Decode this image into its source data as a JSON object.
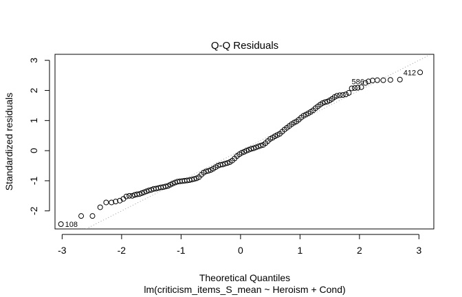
{
  "chart_data": {
    "type": "scatter",
    "title": "Q-Q Residuals",
    "xlabel": "Theoretical Quantiles",
    "ylabel": "Standardized residuals",
    "sublabel": "lm(criticism_items_S_mean ~ Heroism + Cond)",
    "xlim": [
      -3.12,
      3.25
    ],
    "ylim": [
      -2.6,
      3.2
    ],
    "xticks": [
      -3,
      -2,
      -1,
      0,
      1,
      2,
      3
    ],
    "yticks": [
      -2,
      -1,
      0,
      1,
      2,
      3
    ],
    "grid": false,
    "reference_line": {
      "style": "dotted",
      "color": "#999999"
    },
    "labeled_points": [
      {
        "label": "108",
        "x": -3.02,
        "y": -2.44
      },
      {
        "label": "586",
        "x": 2.15,
        "y": 2.3
      },
      {
        "label": "412",
        "x": 3.02,
        "y": 2.6
      }
    ],
    "points": [
      {
        "x": -3.02,
        "y": -2.44
      },
      {
        "x": -2.68,
        "y": -2.17
      },
      {
        "x": -2.49,
        "y": -2.17
      },
      {
        "x": -2.36,
        "y": -1.88
      },
      {
        "x": -2.26,
        "y": -1.72
      },
      {
        "x": -2.17,
        "y": -1.72
      },
      {
        "x": -2.1,
        "y": -1.69
      },
      {
        "x": -2.03,
        "y": -1.66
      },
      {
        "x": -1.97,
        "y": -1.6
      },
      {
        "x": -1.92,
        "y": -1.52
      },
      {
        "x": -1.87,
        "y": -1.5
      },
      {
        "x": -1.82,
        "y": -1.5
      },
      {
        "x": -1.78,
        "y": -1.47
      },
      {
        "x": -1.74,
        "y": -1.45
      },
      {
        "x": -1.7,
        "y": -1.44
      },
      {
        "x": -1.66,
        "y": -1.41
      },
      {
        "x": -1.62,
        "y": -1.38
      },
      {
        "x": -1.58,
        "y": -1.35
      },
      {
        "x": -1.54,
        "y": -1.32
      },
      {
        "x": -1.5,
        "y": -1.3
      },
      {
        "x": -1.46,
        "y": -1.27
      },
      {
        "x": -1.42,
        "y": -1.26
      },
      {
        "x": -1.38,
        "y": -1.24
      },
      {
        "x": -1.34,
        "y": -1.22
      },
      {
        "x": -1.3,
        "y": -1.21
      },
      {
        "x": -1.26,
        "y": -1.19
      },
      {
        "x": -1.22,
        "y": -1.17
      },
      {
        "x": -1.18,
        "y": -1.13
      },
      {
        "x": -1.14,
        "y": -1.09
      },
      {
        "x": -1.1,
        "y": -1.06
      },
      {
        "x": -1.06,
        "y": -1.03
      },
      {
        "x": -1.02,
        "y": -1.02
      },
      {
        "x": -0.98,
        "y": -1.01
      },
      {
        "x": -0.94,
        "y": -1.0
      },
      {
        "x": -0.9,
        "y": -0.99
      },
      {
        "x": -0.86,
        "y": -0.98
      },
      {
        "x": -0.82,
        "y": -0.96
      },
      {
        "x": -0.78,
        "y": -0.94
      },
      {
        "x": -0.74,
        "y": -0.92
      },
      {
        "x": -0.7,
        "y": -0.88
      },
      {
        "x": -0.66,
        "y": -0.8
      },
      {
        "x": -0.62,
        "y": -0.73
      },
      {
        "x": -0.58,
        "y": -0.69
      },
      {
        "x": -0.54,
        "y": -0.67
      },
      {
        "x": -0.5,
        "y": -0.64
      },
      {
        "x": -0.46,
        "y": -0.6
      },
      {
        "x": -0.42,
        "y": -0.55
      },
      {
        "x": -0.38,
        "y": -0.5
      },
      {
        "x": -0.34,
        "y": -0.47
      },
      {
        "x": -0.3,
        "y": -0.46
      },
      {
        "x": -0.26,
        "y": -0.43
      },
      {
        "x": -0.22,
        "y": -0.41
      },
      {
        "x": -0.18,
        "y": -0.38
      },
      {
        "x": -0.14,
        "y": -0.33
      },
      {
        "x": -0.1,
        "y": -0.26
      },
      {
        "x": -0.06,
        "y": -0.18
      },
      {
        "x": -0.02,
        "y": -0.12
      },
      {
        "x": 0.02,
        "y": -0.07
      },
      {
        "x": 0.06,
        "y": -0.04
      },
      {
        "x": 0.1,
        "y": 0.0
      },
      {
        "x": 0.14,
        "y": 0.03
      },
      {
        "x": 0.18,
        "y": 0.06
      },
      {
        "x": 0.22,
        "y": 0.08
      },
      {
        "x": 0.26,
        "y": 0.11
      },
      {
        "x": 0.3,
        "y": 0.14
      },
      {
        "x": 0.34,
        "y": 0.17
      },
      {
        "x": 0.38,
        "y": 0.19
      },
      {
        "x": 0.42,
        "y": 0.25
      },
      {
        "x": 0.46,
        "y": 0.32
      },
      {
        "x": 0.5,
        "y": 0.39
      },
      {
        "x": 0.54,
        "y": 0.43
      },
      {
        "x": 0.58,
        "y": 0.48
      },
      {
        "x": 0.62,
        "y": 0.52
      },
      {
        "x": 0.66,
        "y": 0.56
      },
      {
        "x": 0.7,
        "y": 0.63
      },
      {
        "x": 0.74,
        "y": 0.7
      },
      {
        "x": 0.78,
        "y": 0.76
      },
      {
        "x": 0.82,
        "y": 0.82
      },
      {
        "x": 0.86,
        "y": 0.88
      },
      {
        "x": 0.9,
        "y": 0.93
      },
      {
        "x": 0.94,
        "y": 0.97
      },
      {
        "x": 0.98,
        "y": 1.03
      },
      {
        "x": 1.02,
        "y": 1.1
      },
      {
        "x": 1.06,
        "y": 1.16
      },
      {
        "x": 1.1,
        "y": 1.2
      },
      {
        "x": 1.14,
        "y": 1.24
      },
      {
        "x": 1.18,
        "y": 1.29
      },
      {
        "x": 1.22,
        "y": 1.34
      },
      {
        "x": 1.26,
        "y": 1.41
      },
      {
        "x": 1.3,
        "y": 1.47
      },
      {
        "x": 1.34,
        "y": 1.53
      },
      {
        "x": 1.38,
        "y": 1.58
      },
      {
        "x": 1.42,
        "y": 1.61
      },
      {
        "x": 1.46,
        "y": 1.63
      },
      {
        "x": 1.5,
        "y": 1.67
      },
      {
        "x": 1.54,
        "y": 1.72
      },
      {
        "x": 1.58,
        "y": 1.78
      },
      {
        "x": 1.62,
        "y": 1.82
      },
      {
        "x": 1.67,
        "y": 1.84
      },
      {
        "x": 1.72,
        "y": 1.85
      },
      {
        "x": 1.77,
        "y": 1.87
      },
      {
        "x": 1.82,
        "y": 1.92
      },
      {
        "x": 1.87,
        "y": 2.07
      },
      {
        "x": 1.92,
        "y": 2.08
      },
      {
        "x": 1.97,
        "y": 2.09
      },
      {
        "x": 2.03,
        "y": 2.11
      },
      {
        "x": 2.1,
        "y": 2.25
      },
      {
        "x": 2.15,
        "y": 2.3
      },
      {
        "x": 2.22,
        "y": 2.33
      },
      {
        "x": 2.3,
        "y": 2.34
      },
      {
        "x": 2.4,
        "y": 2.34
      },
      {
        "x": 2.52,
        "y": 2.35
      },
      {
        "x": 2.68,
        "y": 2.36
      },
      {
        "x": 3.02,
        "y": 2.6
      }
    ]
  }
}
